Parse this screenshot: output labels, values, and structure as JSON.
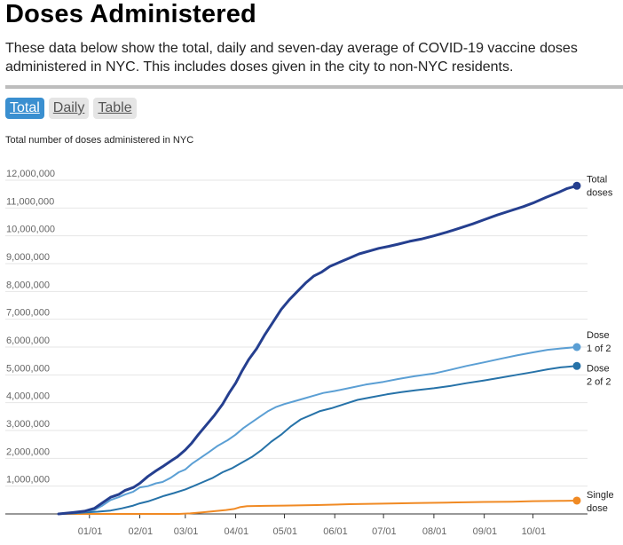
{
  "header": {
    "title": "Doses Administered",
    "description": "These data below show the total, daily and seven-day average of COVID-19 vaccine doses administered in NYC. This includes doses given in the city to non-NYC residents."
  },
  "tabs": [
    {
      "label": "Total",
      "active": true
    },
    {
      "label": "Daily",
      "active": false
    },
    {
      "label": "Table",
      "active": false
    }
  ],
  "chart_subtitle": "Total number of doses administered in NYC",
  "colors": {
    "total": "#253f8f",
    "dose1": "#5b9fd4",
    "dose2": "#2672a8",
    "single": "#f08a24",
    "grid": "#e6e6e6",
    "tab_active": "#3a8fd0"
  },
  "chart_data": {
    "type": "line",
    "title": "Total number of doses administered in NYC",
    "xlabel": "",
    "ylabel": "",
    "ylim": [
      0,
      12000000
    ],
    "yticks": [
      {
        "value": 1000000,
        "label": "1,000,000"
      },
      {
        "value": 2000000,
        "label": "2,000,000"
      },
      {
        "value": 3000000,
        "label": "3,000,000"
      },
      {
        "value": 4000000,
        "label": "4,000,000"
      },
      {
        "value": 5000000,
        "label": "5,000,000"
      },
      {
        "value": 6000000,
        "label": "6,000,000"
      },
      {
        "value": 7000000,
        "label": "7,000,000"
      },
      {
        "value": 8000000,
        "label": "8,000,000"
      },
      {
        "value": 9000000,
        "label": "9,000,000"
      },
      {
        "value": 10000000,
        "label": "10,000,000"
      },
      {
        "value": 11000000,
        "label": "11,000,000"
      },
      {
        "value": 12000000,
        "label": "12,000,000"
      }
    ],
    "xticks": [
      {
        "day": 0,
        "label": "01/01"
      },
      {
        "day": 31,
        "label": "02/01"
      },
      {
        "day": 59,
        "label": "03/01"
      },
      {
        "day": 90,
        "label": "04/01"
      },
      {
        "day": 120,
        "label": "05/01"
      },
      {
        "day": 151,
        "label": "06/01"
      },
      {
        "day": 181,
        "label": "07/01"
      },
      {
        "day": 212,
        "label": "08/01"
      },
      {
        "day": 243,
        "label": "09/01"
      },
      {
        "day": 273,
        "label": "10/01"
      }
    ],
    "xlim": [
      -19,
      297
    ],
    "x_unit": "days since 2021-01-01",
    "series": [
      {
        "key": "total",
        "name": "Total doses",
        "label_lines": [
          "Total",
          "doses"
        ],
        "points": [
          [
            -19,
            0
          ],
          [
            -10,
            50000
          ],
          [
            -3,
            100000
          ],
          [
            3,
            200000
          ],
          [
            8,
            400000
          ],
          [
            13,
            600000
          ],
          [
            18,
            700000
          ],
          [
            22,
            850000
          ],
          [
            27,
            950000
          ],
          [
            31,
            1100000
          ],
          [
            36,
            1350000
          ],
          [
            41,
            1550000
          ],
          [
            45,
            1700000
          ],
          [
            50,
            1900000
          ],
          [
            54,
            2050000
          ],
          [
            59,
            2300000
          ],
          [
            63,
            2550000
          ],
          [
            67,
            2850000
          ],
          [
            72,
            3200000
          ],
          [
            77,
            3550000
          ],
          [
            82,
            3950000
          ],
          [
            86,
            4350000
          ],
          [
            90,
            4700000
          ],
          [
            94,
            5150000
          ],
          [
            98,
            5550000
          ],
          [
            103,
            5950000
          ],
          [
            108,
            6450000
          ],
          [
            113,
            6900000
          ],
          [
            118,
            7350000
          ],
          [
            123,
            7700000
          ],
          [
            128,
            8000000
          ],
          [
            133,
            8300000
          ],
          [
            138,
            8550000
          ],
          [
            143,
            8700000
          ],
          [
            148,
            8900000
          ],
          [
            154,
            9050000
          ],
          [
            160,
            9200000
          ],
          [
            166,
            9350000
          ],
          [
            172,
            9450000
          ],
          [
            178,
            9550000
          ],
          [
            184,
            9620000
          ],
          [
            190,
            9700000
          ],
          [
            197,
            9800000
          ],
          [
            204,
            9880000
          ],
          [
            212,
            10000000
          ],
          [
            220,
            10130000
          ],
          [
            228,
            10280000
          ],
          [
            236,
            10430000
          ],
          [
            243,
            10580000
          ],
          [
            251,
            10750000
          ],
          [
            259,
            10900000
          ],
          [
            267,
            11050000
          ],
          [
            273,
            11180000
          ],
          [
            281,
            11380000
          ],
          [
            289,
            11570000
          ],
          [
            294,
            11700000
          ],
          [
            300,
            11800000
          ]
        ]
      },
      {
        "key": "dose1",
        "name": "Dose 1 of 2",
        "label_lines": [
          "Dose",
          "1 of 2"
        ],
        "points": [
          [
            -19,
            0
          ],
          [
            -10,
            40000
          ],
          [
            -3,
            80000
          ],
          [
            3,
            150000
          ],
          [
            8,
            300000
          ],
          [
            13,
            500000
          ],
          [
            18,
            600000
          ],
          [
            22,
            700000
          ],
          [
            27,
            800000
          ],
          [
            31,
            950000
          ],
          [
            36,
            1000000
          ],
          [
            41,
            1100000
          ],
          [
            45,
            1150000
          ],
          [
            50,
            1300000
          ],
          [
            55,
            1500000
          ],
          [
            59,
            1600000
          ],
          [
            63,
            1800000
          ],
          [
            68,
            2000000
          ],
          [
            73,
            2200000
          ],
          [
            79,
            2450000
          ],
          [
            85,
            2650000
          ],
          [
            90,
            2850000
          ],
          [
            95,
            3100000
          ],
          [
            100,
            3300000
          ],
          [
            105,
            3500000
          ],
          [
            110,
            3700000
          ],
          [
            115,
            3850000
          ],
          [
            120,
            3950000
          ],
          [
            126,
            4050000
          ],
          [
            132,
            4150000
          ],
          [
            138,
            4250000
          ],
          [
            144,
            4350000
          ],
          [
            151,
            4420000
          ],
          [
            160,
            4530000
          ],
          [
            170,
            4650000
          ],
          [
            181,
            4750000
          ],
          [
            190,
            4850000
          ],
          [
            200,
            4950000
          ],
          [
            212,
            5050000
          ],
          [
            222,
            5180000
          ],
          [
            232,
            5320000
          ],
          [
            243,
            5450000
          ],
          [
            253,
            5580000
          ],
          [
            263,
            5700000
          ],
          [
            273,
            5810000
          ],
          [
            282,
            5900000
          ],
          [
            290,
            5950000
          ],
          [
            300,
            6000000
          ]
        ]
      },
      {
        "key": "dose2",
        "name": "Dose 2 of 2",
        "label_lines": [
          "Dose",
          "2 of 2"
        ],
        "points": [
          [
            -19,
            0
          ],
          [
            -10,
            20000
          ],
          [
            -3,
            50000
          ],
          [
            5,
            80000
          ],
          [
            13,
            120000
          ],
          [
            20,
            200000
          ],
          [
            27,
            300000
          ],
          [
            31,
            380000
          ],
          [
            36,
            450000
          ],
          [
            41,
            550000
          ],
          [
            46,
            650000
          ],
          [
            52,
            750000
          ],
          [
            59,
            880000
          ],
          [
            64,
            1000000
          ],
          [
            70,
            1150000
          ],
          [
            76,
            1300000
          ],
          [
            82,
            1500000
          ],
          [
            88,
            1650000
          ],
          [
            94,
            1850000
          ],
          [
            100,
            2050000
          ],
          [
            106,
            2300000
          ],
          [
            112,
            2600000
          ],
          [
            118,
            2850000
          ],
          [
            124,
            3150000
          ],
          [
            130,
            3400000
          ],
          [
            136,
            3550000
          ],
          [
            142,
            3700000
          ],
          [
            149,
            3800000
          ],
          [
            157,
            3950000
          ],
          [
            165,
            4100000
          ],
          [
            174,
            4200000
          ],
          [
            183,
            4300000
          ],
          [
            192,
            4380000
          ],
          [
            201,
            4450000
          ],
          [
            212,
            4520000
          ],
          [
            222,
            4600000
          ],
          [
            232,
            4700000
          ],
          [
            243,
            4800000
          ],
          [
            253,
            4900000
          ],
          [
            263,
            5000000
          ],
          [
            273,
            5100000
          ],
          [
            282,
            5200000
          ],
          [
            290,
            5270000
          ],
          [
            300,
            5320000
          ]
        ]
      },
      {
        "key": "single",
        "name": "Single dose",
        "label_lines": [
          "Single",
          "dose"
        ],
        "points": [
          [
            -19,
            0
          ],
          [
            55,
            0
          ],
          [
            62,
            20000
          ],
          [
            70,
            60000
          ],
          [
            77,
            100000
          ],
          [
            84,
            140000
          ],
          [
            89,
            180000
          ],
          [
            93,
            250000
          ],
          [
            97,
            280000
          ],
          [
            108,
            290000
          ],
          [
            120,
            300000
          ],
          [
            140,
            320000
          ],
          [
            160,
            350000
          ],
          [
            181,
            370000
          ],
          [
            200,
            390000
          ],
          [
            220,
            410000
          ],
          [
            243,
            430000
          ],
          [
            260,
            440000
          ],
          [
            273,
            460000
          ],
          [
            290,
            470000
          ],
          [
            300,
            480000
          ]
        ]
      }
    ]
  }
}
